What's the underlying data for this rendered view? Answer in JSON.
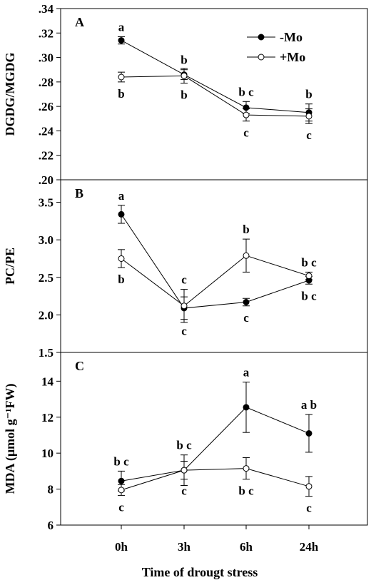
{
  "xlabel": "Time of drougt stress",
  "x_categories": [
    "0h",
    "3h",
    "6h",
    "24h"
  ],
  "legend": {
    "minus": "-Mo",
    "plus": "+Mo"
  },
  "series_colors": {
    "minus": "#000000",
    "plus": "#ffffff"
  },
  "chart_data": [
    {
      "type": "line",
      "panel": "A",
      "ylabel": "DGDG/MGDG",
      "ylim": [
        0.2,
        0.34
      ],
      "yticks": [
        0.2,
        0.22,
        0.24,
        0.26,
        0.28,
        0.3,
        0.32,
        0.34
      ],
      "yticklabels": [
        ".20",
        ".22",
        ".24",
        ".26",
        ".28",
        ".30",
        ".32",
        ".34"
      ],
      "categories": [
        "0h",
        "3h",
        "6h",
        "24h"
      ],
      "series": [
        {
          "name": "-Mo",
          "key": "minus",
          "values": [
            0.314,
            0.286,
            0.259,
            0.255
          ],
          "errors": [
            0.003,
            0.004,
            0.005,
            0.007
          ],
          "sig": [
            {
              "text": "a",
              "pos": "above"
            },
            {
              "text": "b",
              "pos": "above"
            },
            {
              "text": "b c",
              "pos": "above"
            },
            {
              "text": "b",
              "pos": "above"
            }
          ]
        },
        {
          "name": "+Mo",
          "key": "plus",
          "values": [
            0.284,
            0.285,
            0.253,
            0.252
          ],
          "errors": [
            0.004,
            0.006,
            0.005,
            0.006
          ],
          "sig": [
            {
              "text": "b",
              "pos": "below"
            },
            {
              "text": "b",
              "pos": "below"
            },
            {
              "text": "c",
              "pos": "below"
            },
            {
              "text": "c",
              "pos": "below"
            }
          ]
        }
      ]
    },
    {
      "type": "line",
      "panel": "B",
      "ylabel": "PC/PE",
      "ylim": [
        1.5,
        3.8
      ],
      "yticks": [
        1.5,
        2.0,
        2.5,
        3.0,
        3.5
      ],
      "yticklabels": [
        "1.5",
        "2.0",
        "2.5",
        "3.0",
        "3.5"
      ],
      "categories": [
        "0h",
        "3h",
        "6h",
        "24h"
      ],
      "series": [
        {
          "name": "-Mo",
          "key": "minus",
          "values": [
            3.34,
            2.09,
            2.17,
            2.46
          ],
          "errors": [
            0.12,
            0.15,
            0.05,
            0.05
          ],
          "sig": [
            {
              "text": "a",
              "pos": "above"
            },
            {
              "text": "c",
              "pos": "below"
            },
            {
              "text": "c",
              "pos": "below"
            },
            {
              "text": "b c",
              "pos": "below"
            }
          ]
        },
        {
          "name": "+Mo",
          "key": "plus",
          "values": [
            2.75,
            2.12,
            2.79,
            2.52
          ],
          "errors": [
            0.12,
            0.22,
            0.22,
            0.05
          ],
          "sig": [
            {
              "text": "b",
              "pos": "below"
            },
            {
              "text": "c",
              "pos": "above"
            },
            {
              "text": "b",
              "pos": "above"
            },
            {
              "text": "b c",
              "pos": "above"
            }
          ]
        }
      ]
    },
    {
      "type": "line",
      "panel": "C",
      "ylabel": "MDA (μmol g⁻¹FW)",
      "ylim": [
        6,
        15.6
      ],
      "yticks": [
        6,
        8,
        10,
        12,
        14
      ],
      "yticklabels": [
        "6",
        "8",
        "10",
        "12",
        "14"
      ],
      "categories": [
        "0h",
        "3h",
        "6h",
        "24h"
      ],
      "series": [
        {
          "name": "-Mo",
          "key": "minus",
          "values": [
            8.45,
            9.05,
            12.55,
            11.1
          ],
          "errors": [
            0.55,
            0.85,
            1.4,
            1.05
          ],
          "sig": [
            {
              "text": "b c",
              "pos": "above"
            },
            {
              "text": "b c",
              "pos": "above"
            },
            {
              "text": "a",
              "pos": "above"
            },
            {
              "text": "a b",
              "pos": "above"
            }
          ]
        },
        {
          "name": "+Mo",
          "key": "plus",
          "values": [
            7.95,
            9.05,
            9.15,
            8.15
          ],
          "errors": [
            0.3,
            0.5,
            0.6,
            0.55
          ],
          "sig": [
            {
              "text": "c",
              "pos": "below"
            },
            {
              "text": "c",
              "pos": "below"
            },
            {
              "text": "b c",
              "pos": "below"
            },
            {
              "text": "c",
              "pos": "below"
            }
          ]
        }
      ]
    }
  ]
}
